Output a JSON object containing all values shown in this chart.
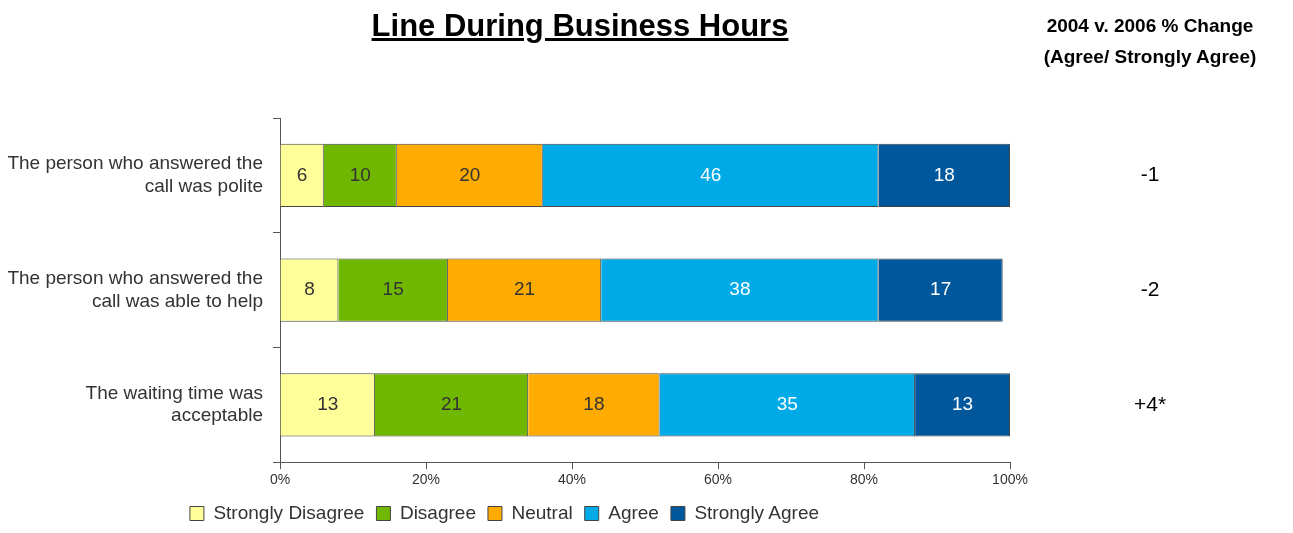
{
  "chart_data": {
    "type": "bar",
    "orientation": "horizontal",
    "stacked": true,
    "title": "Line During Business Hours",
    "categories": [
      "The person who answered the call was polite",
      "The person who answered the call was able to help",
      "The waiting time was acceptable"
    ],
    "series": [
      {
        "name": "Strongly Disagree",
        "color": "#ffff99",
        "values": [
          6,
          8,
          13
        ]
      },
      {
        "name": "Disagree",
        "color": "#70b800",
        "values": [
          10,
          15,
          21
        ]
      },
      {
        "name": "Neutral",
        "color": "#ffab00",
        "values": [
          20,
          21,
          18
        ]
      },
      {
        "name": "Agree",
        "color": "#00aae6",
        "values": [
          46,
          38,
          35
        ]
      },
      {
        "name": "Strongly Agree",
        "color": "#00579c",
        "values": [
          18,
          17,
          13
        ]
      }
    ],
    "xlim": [
      0,
      100
    ],
    "xticks": [
      {
        "value": 0,
        "label": "0%"
      },
      {
        "value": 20,
        "label": "20%"
      },
      {
        "value": 40,
        "label": "40%"
      },
      {
        "value": 60,
        "label": "60%"
      },
      {
        "value": 80,
        "label": "80%"
      },
      {
        "value": 100,
        "label": "100%"
      }
    ],
    "data_labels": true,
    "grid": false,
    "legend": "bottom",
    "annotations": [
      "2004 v. 2006 % Change (Agree/ Strongly Agree)",
      "-1",
      "-2",
      "+4*"
    ]
  }
}
